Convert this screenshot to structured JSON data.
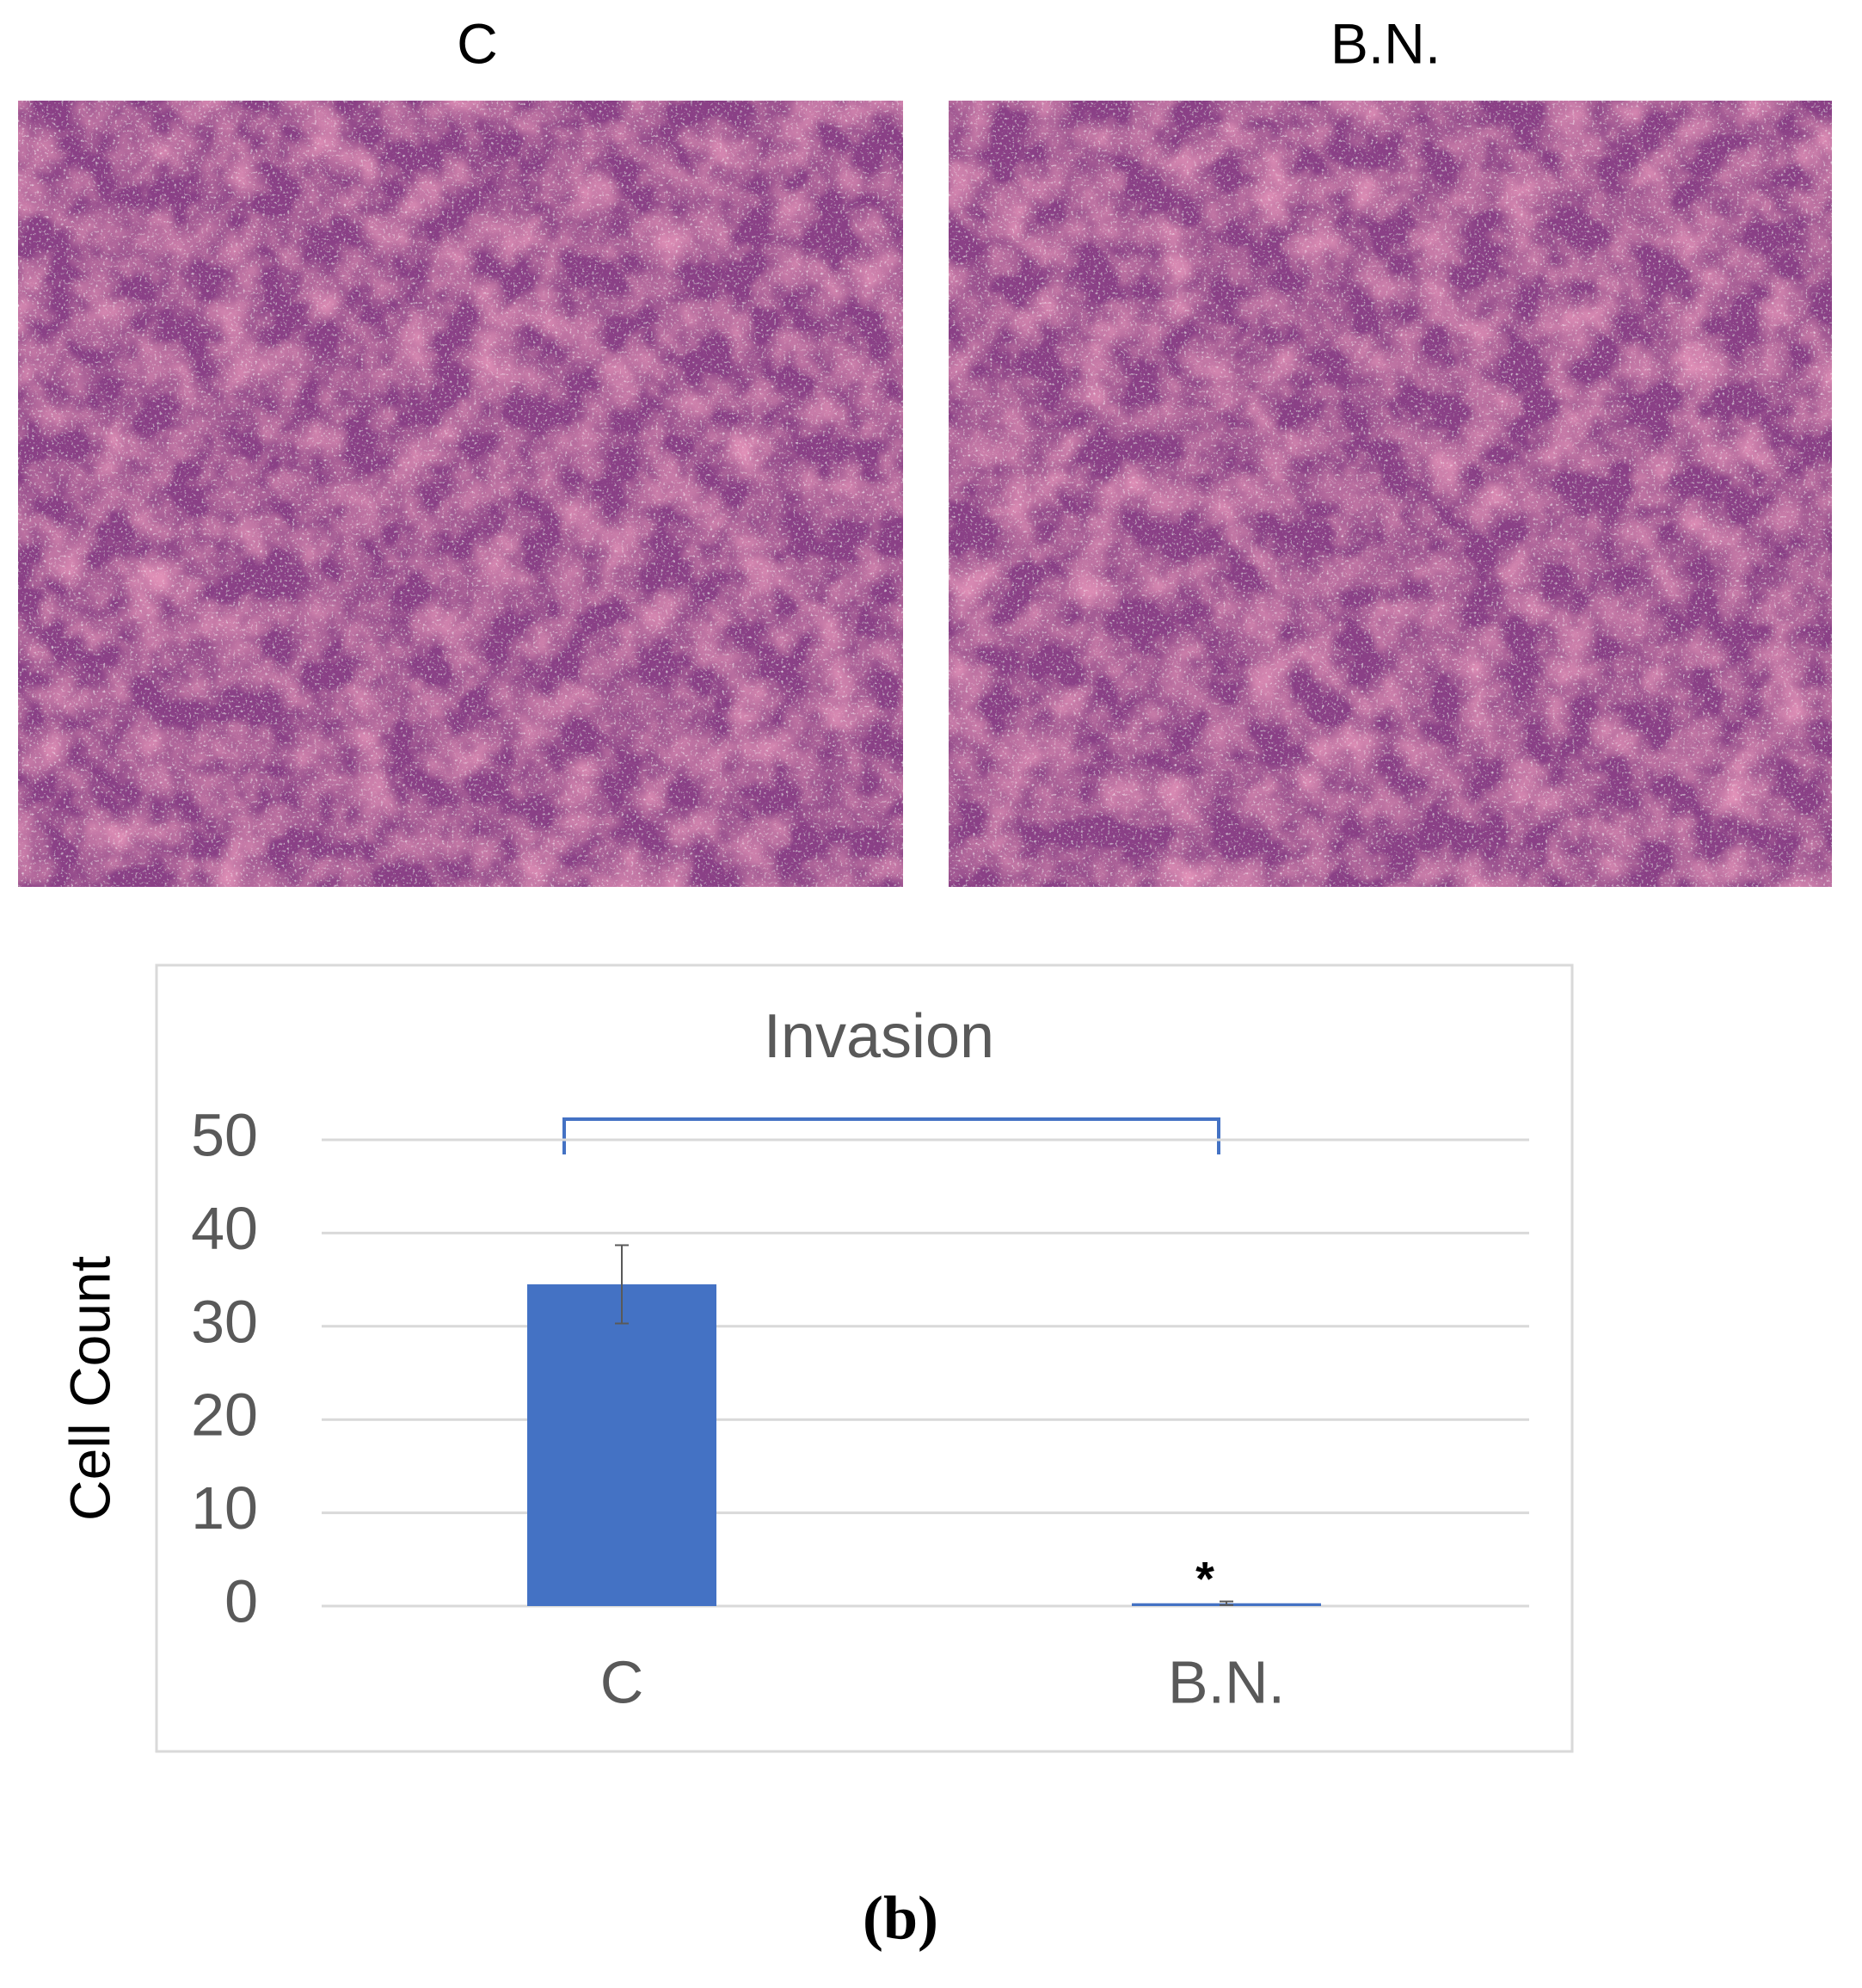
{
  "figure": {
    "panel_titles": [
      "C",
      "B.N."
    ],
    "caption": "(b)"
  },
  "chart_data": {
    "type": "bar",
    "title": "Invasion",
    "y_label": "Cell Count",
    "categories": [
      "C",
      "B.N."
    ],
    "values": [
      34.5,
      0.3
    ],
    "errors": [
      4.2,
      0.2
    ],
    "color": "#4472c4",
    "annotation": "*",
    "ylim": [
      0,
      50
    ],
    "yticks": [
      0,
      10,
      20,
      30,
      40,
      50
    ],
    "grid": true
  }
}
